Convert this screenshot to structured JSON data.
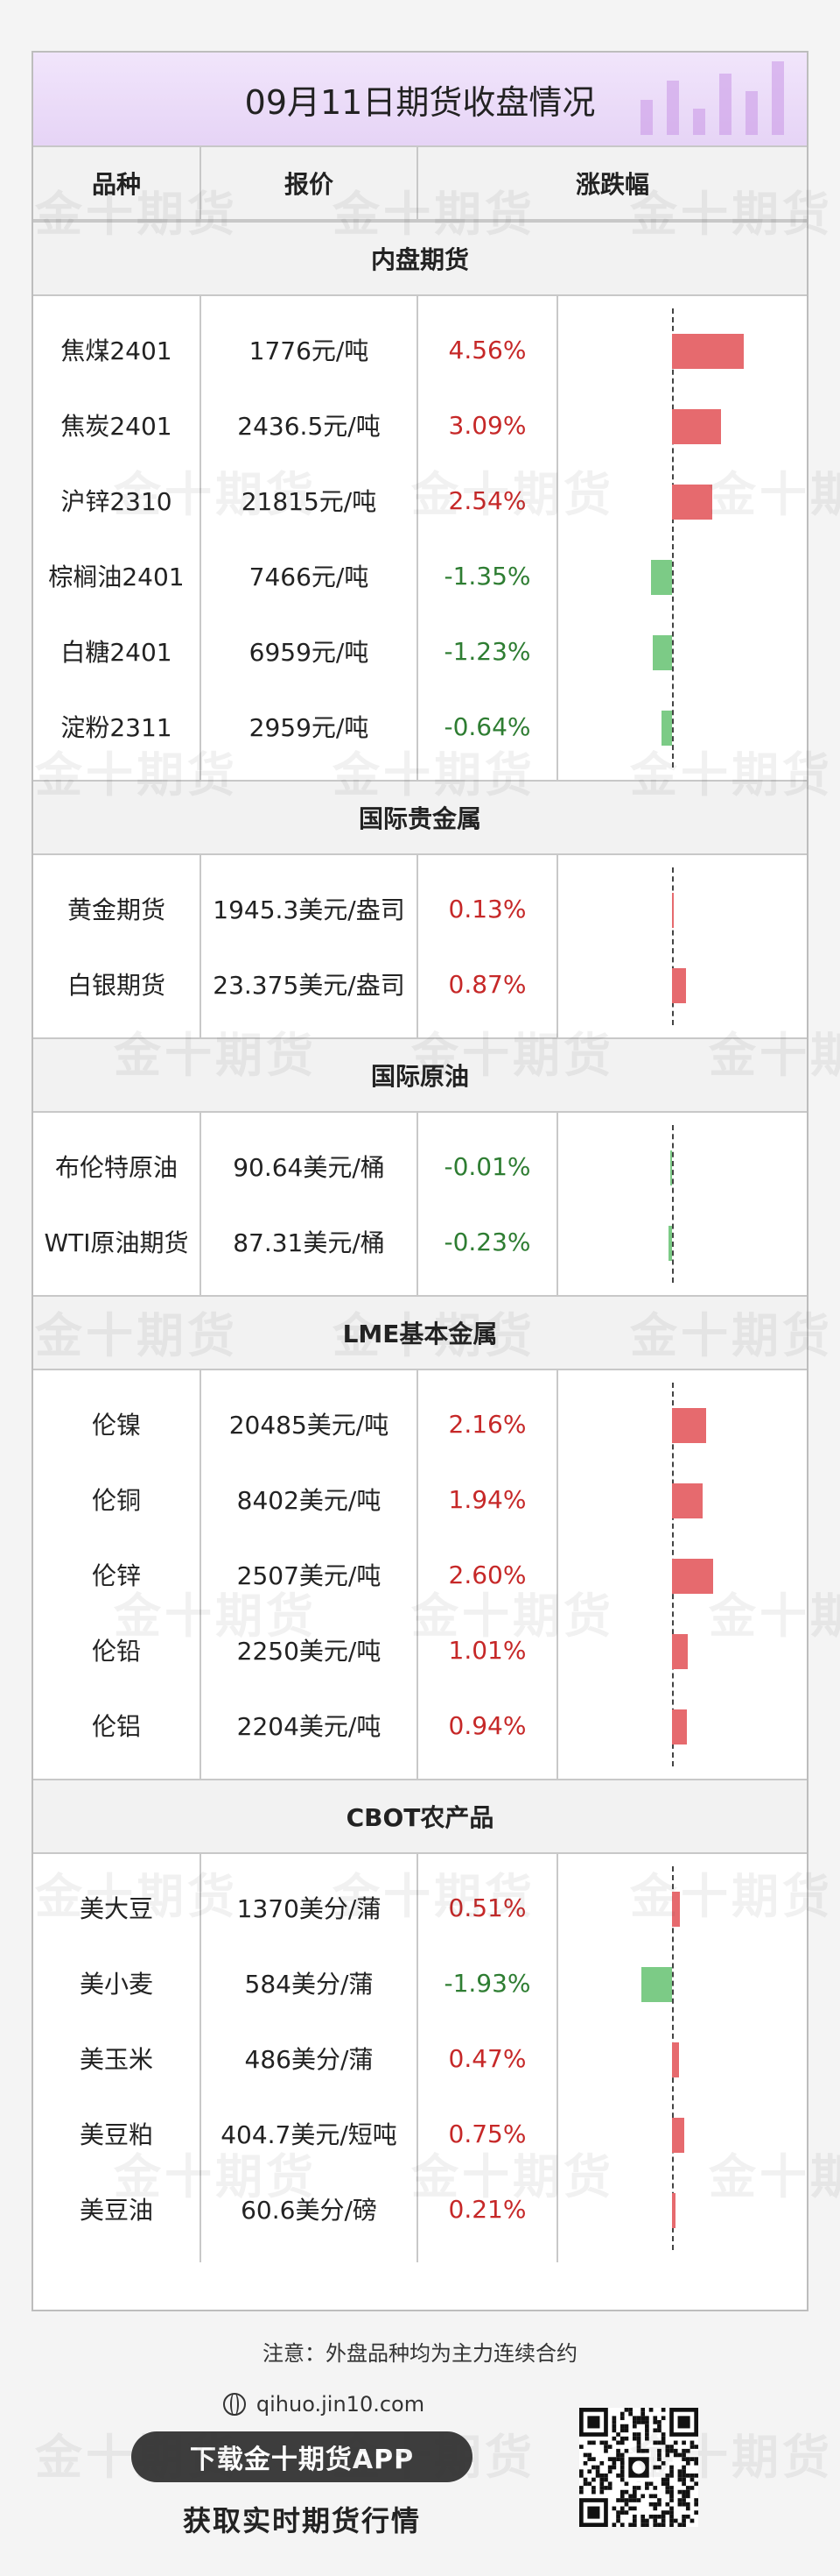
{
  "title": "09月11日期货收盘情况",
  "columns": [
    "品种",
    "报价",
    "涨跌幅"
  ],
  "watermark": "金十期货",
  "sections": [
    {
      "name": "内盘期货",
      "items": [
        {
          "name": "焦煤2401",
          "price": "1776元/吨",
          "change": "4.56%",
          "value": 4.56
        },
        {
          "name": "焦炭2401",
          "price": "2436.5元/吨",
          "change": "3.09%",
          "value": 3.09
        },
        {
          "name": "沪锌2310",
          "price": "21815元/吨",
          "change": "2.54%",
          "value": 2.54
        },
        {
          "name": "棕榈油2401",
          "price": "7466元/吨",
          "change": "-1.35%",
          "value": -1.35
        },
        {
          "name": "白糖2401",
          "price": "6959元/吨",
          "change": "-1.23%",
          "value": -1.23
        },
        {
          "name": "淀粉2311",
          "price": "2959元/吨",
          "change": "-0.64%",
          "value": -0.64
        }
      ]
    },
    {
      "name": "国际贵金属",
      "items": [
        {
          "name": "黄金期货",
          "price": "1945.3美元/盎司",
          "change": "0.13%",
          "value": 0.13
        },
        {
          "name": "白银期货",
          "price": "23.375美元/盎司",
          "change": "0.87%",
          "value": 0.87
        }
      ]
    },
    {
      "name": "国际原油",
      "items": [
        {
          "name": "布伦特原油",
          "price": "90.64美元/桶",
          "change": "-0.01%",
          "value": -0.01
        },
        {
          "name": "WTI原油期货",
          "price": "87.31美元/桶",
          "change": "-0.23%",
          "value": -0.23
        }
      ]
    },
    {
      "name": "LME基本金属",
      "items": [
        {
          "name": "伦镍",
          "price": "20485美元/吨",
          "change": "2.16%",
          "value": 2.16
        },
        {
          "name": "伦铜",
          "price": "8402美元/吨",
          "change": "1.94%",
          "value": 1.94
        },
        {
          "name": "伦锌",
          "price": "2507美元/吨",
          "change": "2.60%",
          "value": 2.6
        },
        {
          "name": "伦铅",
          "price": "2250美元/吨",
          "change": "1.01%",
          "value": 1.01
        },
        {
          "name": "伦铝",
          "price": "2204美元/吨",
          "change": "0.94%",
          "value": 0.94
        }
      ]
    },
    {
      "name": "CBOT农产品",
      "items": [
        {
          "name": "美大豆",
          "price": "1370美分/蒲",
          "change": "0.51%",
          "value": 0.51
        },
        {
          "name": "美小麦",
          "price": "584美分/蒲",
          "change": "-1.93%",
          "value": -1.93
        },
        {
          "name": "美玉米",
          "price": "486美分/蒲",
          "change": "0.47%",
          "value": 0.47
        },
        {
          "name": "美豆粕",
          "price": "404.7美元/短吨",
          "change": "0.75%",
          "value": 0.75
        },
        {
          "name": "美豆油",
          "price": "60.6美分/磅",
          "change": "0.21%",
          "value": 0.21
        }
      ]
    }
  ],
  "colors": {
    "up": "#e66a6e",
    "down": "#7ccb86",
    "up_text": "#c62828",
    "down_text": "#2e7d32"
  },
  "footer": {
    "note": "注意：外盘品种均为主力连续合约",
    "url": "qihuo.jin10.com",
    "download": "下载金十期货APP",
    "slogan": "获取实时期货行情",
    "qr_icon": "qr-code-icon"
  }
}
